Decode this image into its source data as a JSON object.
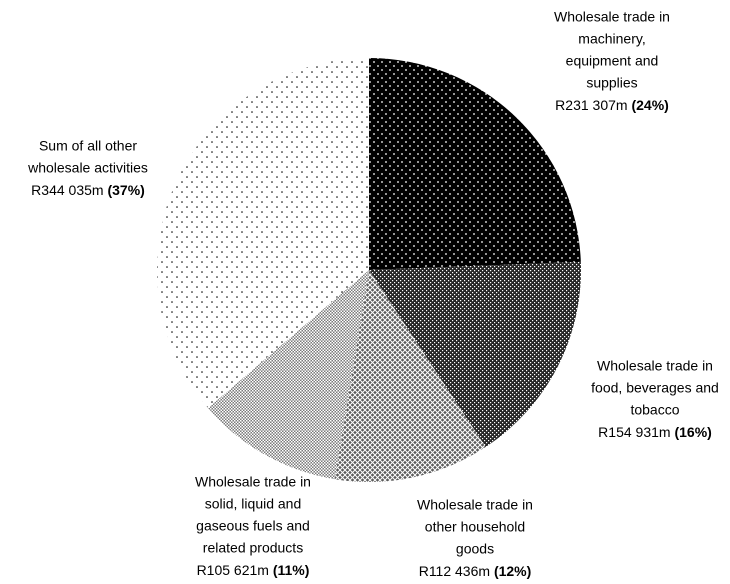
{
  "chart_data": {
    "type": "pie",
    "categories": [
      [
        "Wholesale trade in",
        "machinery,",
        "equipment and",
        "supplies"
      ],
      [
        "Wholesale trade in",
        "food, beverages and",
        "tobacco"
      ],
      [
        "Wholesale trade in",
        "other household",
        "goods"
      ],
      [
        "Wholesale trade in",
        "solid, liquid and",
        "gaseous fuels and",
        "related products"
      ],
      [
        "Sum of all other",
        "wholesale activities"
      ]
    ],
    "values": [
      231307,
      154931,
      112436,
      105621,
      344035
    ],
    "value_labels": [
      "R231 307m",
      "R154 931m",
      "R112 436m",
      "R105 621m",
      "R344 035m"
    ],
    "shares": [
      24,
      16,
      12,
      11,
      37
    ],
    "share_labels": [
      "(24%)",
      "(16%)",
      "(12%)",
      "(11%)",
      "(37%)"
    ],
    "colors": [
      "#000000",
      "#262626",
      "#5a5a5a",
      "#7a7a7a",
      "#ffffff"
    ]
  }
}
